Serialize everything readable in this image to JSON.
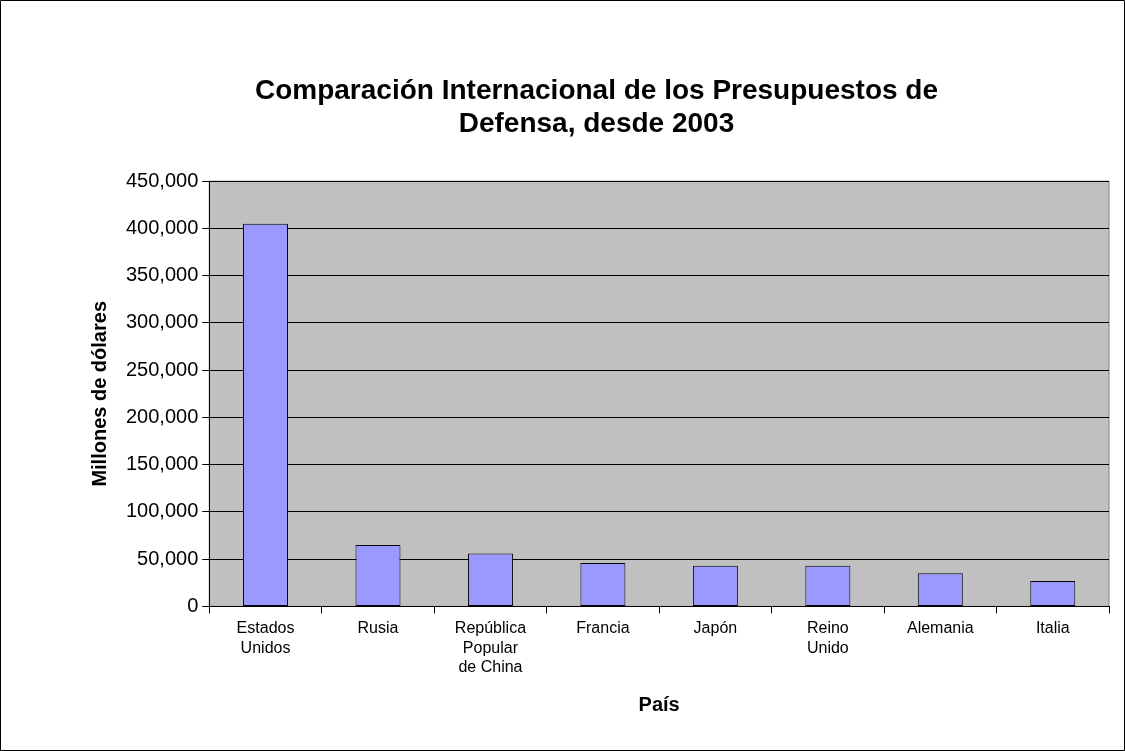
{
  "chart_data": {
    "type": "bar",
    "title": "Comparación Internacional de los Presupuestos de Defensa, desde 2003",
    "xlabel": "País",
    "ylabel": "Millones de dólares",
    "categories": [
      "Estados Unidos",
      "Rusia",
      "República Popular de China",
      "Francia",
      "Japón",
      "Reino Unido",
      "Alemania",
      "Italia"
    ],
    "values": [
      405000,
      65000,
      56000,
      46000,
      43000,
      43000,
      35000,
      27000
    ],
    "color": "#9999ff",
    "ylim": [
      0,
      450000
    ],
    "yticks": [
      {
        "value": 0,
        "label": "0"
      },
      {
        "value": 50000,
        "label": "50,000"
      },
      {
        "value": 100000,
        "label": "100,000"
      },
      {
        "value": 150000,
        "label": "150,000"
      },
      {
        "value": 200000,
        "label": "200,000"
      },
      {
        "value": 250000,
        "label": "250,000"
      },
      {
        "value": 300000,
        "label": "300,000"
      },
      {
        "value": 350000,
        "label": "350,000"
      },
      {
        "value": 400000,
        "label": "400,000"
      },
      {
        "value": 450000,
        "label": "450,000"
      }
    ],
    "grid": "y",
    "legend": false
  }
}
